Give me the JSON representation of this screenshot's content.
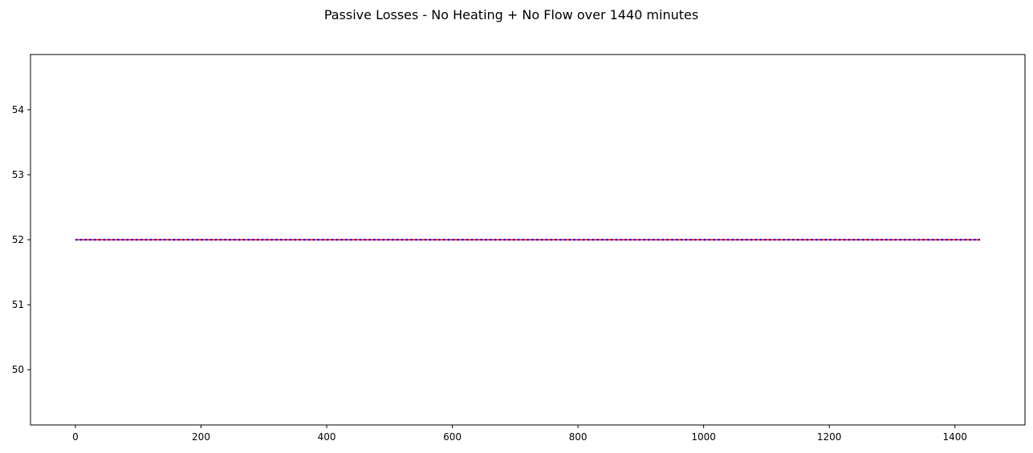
{
  "chart_data": {
    "type": "line",
    "title": "Passive Losses - No Heating + No Flow over 1440 minutes",
    "xlabel": "",
    "ylabel": "",
    "xlim": [
      -71.5,
      1511.5
    ],
    "ylim": [
      49.15,
      54.85
    ],
    "x_ticks": [
      0,
      200,
      400,
      600,
      800,
      1000,
      1200,
      1400
    ],
    "y_ticks": [
      50,
      51,
      52,
      53,
      54
    ],
    "grid": false,
    "legend": "none",
    "series": [
      {
        "color": "#ff0000",
        "style": "solid",
        "x": [
          0,
          1440
        ],
        "y": [
          52,
          52
        ]
      },
      {
        "color": "#0000ff",
        "style": "dotted",
        "x": [
          0,
          1440
        ],
        "y": [
          52,
          52
        ]
      }
    ]
  }
}
